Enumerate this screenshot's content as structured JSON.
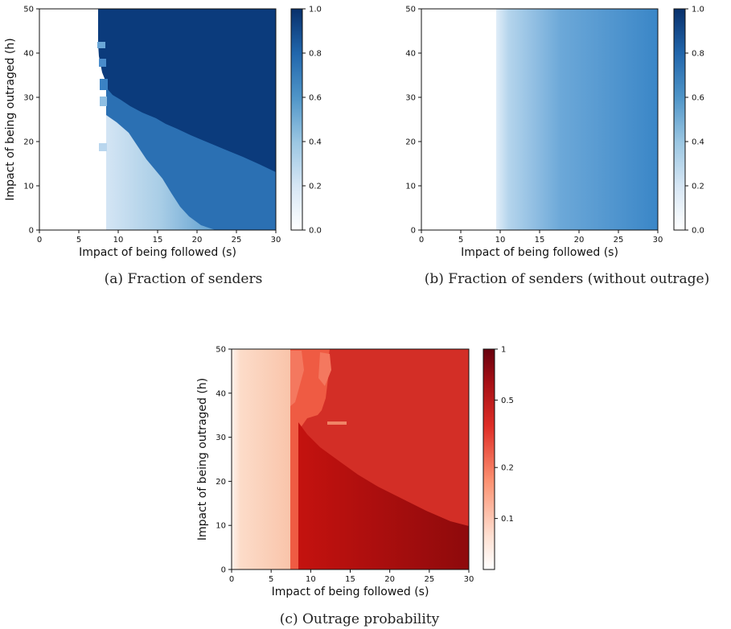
{
  "chart_data": [
    {
      "type": "heatmap",
      "id": "a",
      "caption": "(a) Fraction of senders",
      "xlabel": "Impact of being followed (s)",
      "ylabel": "Impact of being outraged (h)",
      "xlim": [
        0,
        30
      ],
      "ylim": [
        0,
        50
      ],
      "xticks": [
        "0",
        "5",
        "10",
        "15",
        "20",
        "25",
        "30"
      ],
      "yticks": [
        "0",
        "10",
        "20",
        "30",
        "40",
        "50"
      ],
      "colormap": "Blues",
      "colorbar": {
        "range": [
          0,
          1
        ],
        "ticks": [
          "0.0",
          "0.2",
          "0.4",
          "0.6",
          "0.8",
          "1.0"
        ]
      },
      "regions": [
        {
          "desc": "no senders",
          "s_range": [
            0,
            7.5
          ],
          "value": 0.0
        },
        {
          "desc": "all senders (high h)",
          "s_min": 7.5,
          "value": 1.0
        },
        {
          "desc": "intermediate band",
          "s_range": [
            8.5,
            30
          ],
          "value_range": [
            0.7,
            0.8
          ]
        },
        {
          "desc": "low-h pale region",
          "s_range": [
            8.5,
            22
          ],
          "value_range": [
            0.1,
            0.35
          ]
        }
      ],
      "boundaries": {
        "dark_lower": [
          [
            7.5,
            50
          ],
          [
            8,
            32
          ],
          [
            10,
            27
          ],
          [
            14,
            23
          ],
          [
            18,
            20
          ],
          [
            22,
            17
          ],
          [
            26,
            15
          ],
          [
            30,
            13
          ]
        ],
        "light_upper": [
          [
            8.5,
            26
          ],
          [
            10,
            24
          ],
          [
            12,
            20
          ],
          [
            14,
            16
          ],
          [
            16,
            13
          ],
          [
            18,
            10
          ],
          [
            20,
            6
          ],
          [
            22,
            2
          ],
          [
            23,
            0
          ]
        ]
      }
    },
    {
      "type": "heatmap",
      "id": "b",
      "caption": "(b) Fraction of senders (without outrage)",
      "xlabel": "Impact of being followed (s)",
      "ylabel": "",
      "xlim": [
        0,
        30
      ],
      "ylim": [
        0,
        50
      ],
      "xticks": [
        "0",
        "5",
        "10",
        "15",
        "20",
        "25",
        "30"
      ],
      "yticks": [
        "0",
        "10",
        "20",
        "30",
        "40",
        "50"
      ],
      "colormap": "Blues",
      "colorbar": {
        "range": [
          0,
          1
        ],
        "ticks": [
          "0.0",
          "0.2",
          "0.4",
          "0.6",
          "0.8",
          "1.0"
        ]
      },
      "regions": [
        {
          "desc": "no senders",
          "s_range": [
            0,
            9.5
          ],
          "value": 0.0
        },
        {
          "desc": "gradient, independent of h",
          "s_range": [
            9.5,
            30
          ],
          "value_range": [
            0.15,
            0.65
          ]
        }
      ]
    },
    {
      "type": "heatmap",
      "id": "c",
      "caption": "(c) Outrage probability",
      "xlabel": "Impact of being followed (s)",
      "ylabel": "Impact of being outraged (h)",
      "xlim": [
        0,
        30
      ],
      "ylim": [
        0,
        50
      ],
      "xticks": [
        "0",
        "5",
        "10",
        "15",
        "20",
        "25",
        "30"
      ],
      "yticks": [
        "0",
        "10",
        "20",
        "30",
        "40",
        "50"
      ],
      "colormap": "Reds",
      "colorbar": {
        "scale": "log",
        "ticks": [
          "0.1",
          "0.2",
          "0.5",
          "1"
        ]
      },
      "regions": [
        {
          "desc": "pale orange",
          "s_range": [
            0,
            7.5
          ],
          "value_range": [
            0.08,
            0.1
          ]
        },
        {
          "desc": "medium red strip",
          "s_range": [
            7.5,
            12
          ],
          "value": 0.35
        },
        {
          "desc": "red (upper right)",
          "s_range": [
            12,
            30
          ],
          "value": 0.45
        },
        {
          "desc": "dark red (lower right)",
          "s_range": [
            8.5,
            30
          ],
          "value": 0.6
        }
      ]
    }
  ]
}
